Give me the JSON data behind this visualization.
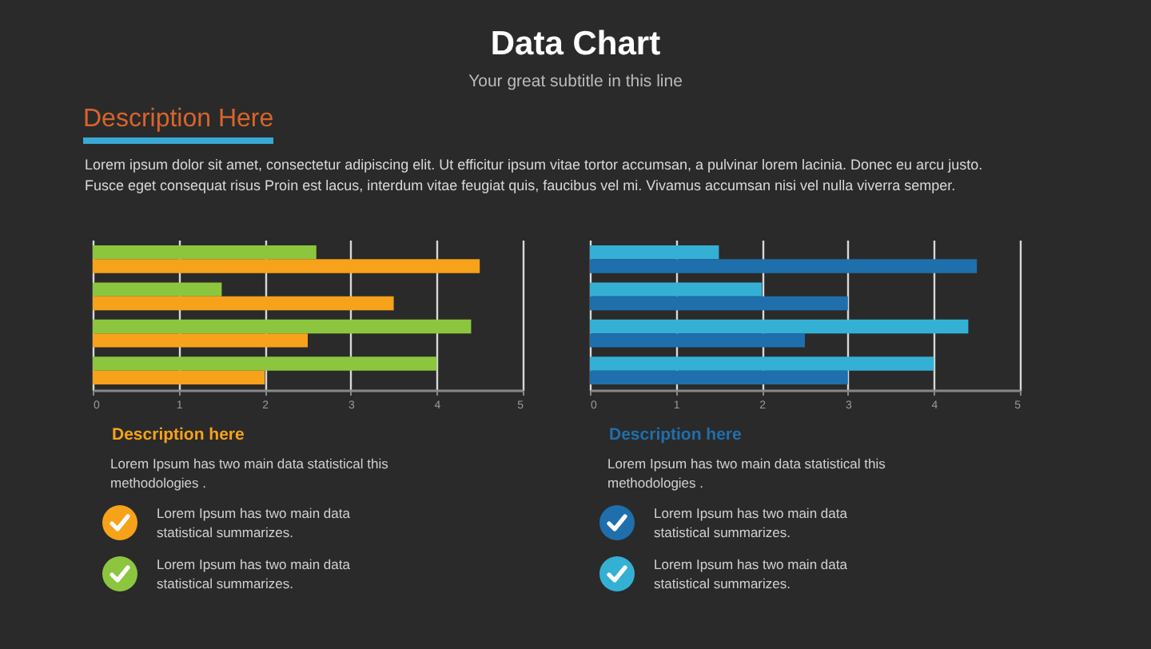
{
  "chart_data": [
    {
      "type": "other",
      "title": "Data Chart",
      "subtitle": "Your great subtitle in this line",
      "annotations": [
        "Description Here",
        "Lorem ipsum dolor sit amet, consectetur adipiscing elit. Ut efficitur ipsum vitae tortor accumsan, a pulvinar lorem lacinia. Donec eu arcu justo. Fusce eget consequat risus Proin est lacus, interdum vitae feugiat quis, faucibus vel mi.  Vivamus accumsan nisi vel nulla viverra semper."
      ]
    },
    {
      "type": "bar",
      "orientation": "horizontal",
      "categories": [
        null,
        null,
        null,
        null
      ],
      "series": [
        {
          "color": "#8cc63f",
          "values": [
            2.6,
            1.5,
            4.4,
            4.0
          ]
        },
        {
          "color": "#f7a21b",
          "values": [
            4.5,
            3.5,
            2.5,
            2.0
          ]
        }
      ],
      "xlim": [
        0,
        5
      ],
      "xticks": [
        0,
        1,
        2,
        3,
        4,
        5
      ],
      "grid": "x",
      "annotations": [
        "Description here",
        "Lorem Ipsum has two main data statistical this methodologies .",
        "Lorem Ipsum has two main data statistical summarizes.",
        "Lorem Ipsum has two main data statistical summarizes."
      ]
    },
    {
      "type": "bar",
      "orientation": "horizontal",
      "categories": [
        null,
        null,
        null,
        null
      ],
      "series": [
        {
          "color": "#35b0d5",
          "values": [
            1.5,
            2.0,
            4.4,
            4.0
          ]
        },
        {
          "color": "#1f6fad",
          "values": [
            4.5,
            3.0,
            2.5,
            3.0
          ]
        }
      ],
      "xlim": [
        0,
        5
      ],
      "xticks": [
        0,
        1,
        2,
        3,
        4,
        5
      ],
      "grid": "x",
      "annotations": [
        "Description here",
        "Lorem Ipsum has two main data statistical this methodologies .",
        "Lorem Ipsum has two main data statistical summarizes.",
        "Lorem Ipsum has two main data statistical summarizes."
      ]
    }
  ]
}
